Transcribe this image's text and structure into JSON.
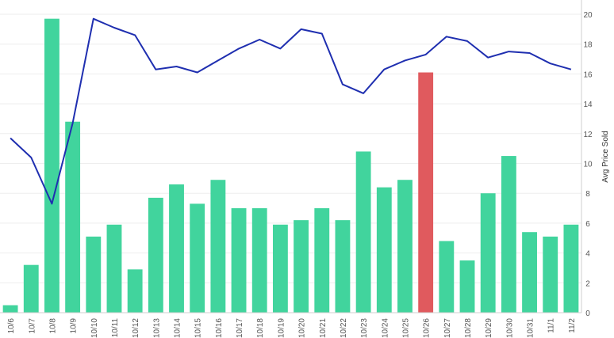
{
  "chart_data": {
    "type": "bar",
    "categories": [
      "10/6",
      "10/7",
      "10/8",
      "10/9",
      "10/10",
      "10/11",
      "10/12",
      "10/13",
      "10/14",
      "10/15",
      "10/16",
      "10/17",
      "10/18",
      "10/19",
      "10/20",
      "10/21",
      "10/22",
      "10/23",
      "10/24",
      "10/25",
      "10/26",
      "10/27",
      "10/28",
      "10/29",
      "10/30",
      "10/31",
      "11/1",
      "11/2"
    ],
    "bar_values": [
      0.5,
      3.2,
      19.7,
      12.8,
      5.1,
      5.9,
      2.9,
      7.7,
      8.6,
      7.3,
      8.9,
      7.0,
      7.0,
      5.9,
      6.2,
      7.0,
      6.2,
      10.8,
      8.4,
      8.9,
      16.1,
      4.8,
      3.5,
      8.0,
      10.5,
      5.4,
      5.1,
      5.9
    ],
    "bar_colors": [
      "#41d49d",
      "#41d49d",
      "#41d49d",
      "#41d49d",
      "#41d49d",
      "#41d49d",
      "#41d49d",
      "#41d49d",
      "#41d49d",
      "#41d49d",
      "#41d49d",
      "#41d49d",
      "#41d49d",
      "#41d49d",
      "#41d49d",
      "#41d49d",
      "#41d49d",
      "#41d49d",
      "#41d49d",
      "#41d49d",
      "#e05a5e",
      "#41d49d",
      "#41d49d",
      "#41d49d",
      "#41d49d",
      "#41d49d",
      "#41d49d",
      "#41d49d"
    ],
    "line_values": [
      11.7,
      10.4,
      7.3,
      12.7,
      19.7,
      19.1,
      18.6,
      16.3,
      16.5,
      16.1,
      16.9,
      17.7,
      18.3,
      17.7,
      19.0,
      18.7,
      15.3,
      14.7,
      16.3,
      16.9,
      17.3,
      18.5,
      18.2,
      17.1,
      17.5,
      17.4,
      16.7,
      16.3
    ],
    "line_color": "#1f2fb0",
    "ylabel": "Avg Price Sold",
    "ylim": [
      0,
      20
    ],
    "yticks": [
      0,
      2,
      4,
      6,
      8,
      10,
      12,
      14,
      16,
      18,
      20
    ],
    "grid": true
  }
}
